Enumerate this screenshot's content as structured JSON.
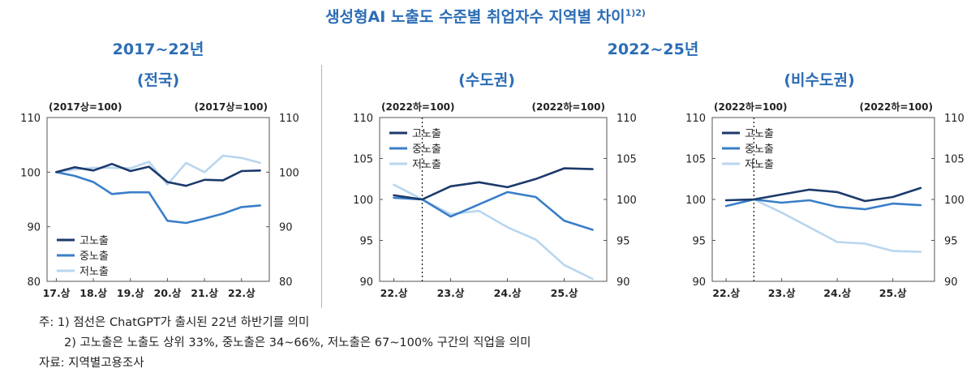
{
  "title": "생성형AI 노출도 수준별 취업자수 지역별 차이",
  "title_sup": "1)2)",
  "headings": {
    "period1": "2017~22년",
    "region1": "(전국)",
    "period2": "2022~25년",
    "region2": "(수도권)",
    "region3": "(비수도권)"
  },
  "notes": {
    "note1": "주: 1) 점선은 ChatGPT가 출시된 22년 하반기를 의미",
    "note2": "2) 고노출은 노출도 상위 33%, 중노출은 34~66%, 저노출은 67~100% 구간의 직업을 의미",
    "source": "자료: 지역별고용조사"
  },
  "colors": {
    "high": "#1b3a6b",
    "mid": "#3a7ec8",
    "low": "#b9d6ef",
    "heading": "#2c6db5"
  },
  "chart_data": [
    {
      "type": "line",
      "title": "(전국)",
      "x": [
        "17.상",
        "17.하",
        "18.상",
        "18.하",
        "19.상",
        "19.하",
        "20.상",
        "20.하",
        "21.상",
        "21.하",
        "22.상",
        "22.하"
      ],
      "xticks": [
        "17.상",
        "18.상",
        "19.상",
        "20.상",
        "21.상",
        "22.상"
      ],
      "ylim": [
        80,
        110
      ],
      "yticks": [
        80,
        90,
        100,
        110
      ],
      "unit_left": "(2017상=100)",
      "unit_right": "(2017상=100)",
      "legend_position": "bottom-left",
      "series": [
        {
          "name": "고노출",
          "values": [
            100,
            100.9,
            100.3,
            101.5,
            100.2,
            101.0,
            98.2,
            97.5,
            98.6,
            98.5,
            100.2,
            100.3
          ]
        },
        {
          "name": "중노출",
          "values": [
            100,
            99.3,
            98.2,
            96.0,
            96.3,
            96.3,
            91.1,
            90.7,
            91.5,
            92.4,
            93.6,
            93.9
          ]
        },
        {
          "name": "저노출",
          "values": [
            100,
            100.5,
            100.8,
            100.8,
            100.7,
            101.9,
            97.7,
            101.7,
            100.0,
            103.0,
            102.6,
            101.7
          ]
        }
      ]
    },
    {
      "type": "line",
      "title": "(수도권)",
      "x": [
        "22.상",
        "22.하",
        "23.상",
        "23.하",
        "24.상",
        "24.하",
        "25.상",
        "25.하"
      ],
      "xticks": [
        "22.상",
        "23.상",
        "24.상",
        "25.상"
      ],
      "ylim": [
        90,
        110
      ],
      "yticks": [
        90,
        95,
        100,
        105,
        110
      ],
      "unit_left": "(2022하=100)",
      "unit_right": "(2022하=100)",
      "reference_line_x": "22.하",
      "legend_position": "top-left",
      "series": [
        {
          "name": "고노출",
          "values": [
            100.5,
            100.0,
            101.6,
            102.1,
            101.5,
            102.5,
            103.8,
            103.7
          ]
        },
        {
          "name": "중노출",
          "values": [
            100.2,
            100.0,
            97.9,
            99.4,
            100.9,
            100.3,
            97.4,
            96.3
          ]
        },
        {
          "name": "저노출",
          "values": [
            101.8,
            100.0,
            98.2,
            98.6,
            96.6,
            95.1,
            92.0,
            90.3
          ]
        }
      ]
    },
    {
      "type": "line",
      "title": "(비수도권)",
      "x": [
        "22.상",
        "22.하",
        "23.상",
        "23.하",
        "24.상",
        "24.하",
        "25.상",
        "25.하"
      ],
      "xticks": [
        "22.상",
        "23.상",
        "24.상",
        "25.상"
      ],
      "ylim": [
        90,
        110
      ],
      "yticks": [
        90,
        95,
        100,
        105,
        110
      ],
      "unit_left": "(2022하=100)",
      "unit_right": "(2022하=100)",
      "reference_line_x": "22.하",
      "legend_position": "top-left",
      "series": [
        {
          "name": "고노출",
          "values": [
            99.9,
            100.0,
            100.6,
            101.2,
            100.9,
            99.8,
            100.3,
            101.4
          ]
        },
        {
          "name": "중노출",
          "values": [
            99.2,
            100.0,
            99.6,
            99.9,
            99.1,
            98.8,
            99.5,
            99.3
          ]
        },
        {
          "name": "저노출",
          "values": [
            99.9,
            100.0,
            98.4,
            96.6,
            94.8,
            94.6,
            93.7,
            93.6
          ]
        }
      ]
    }
  ]
}
